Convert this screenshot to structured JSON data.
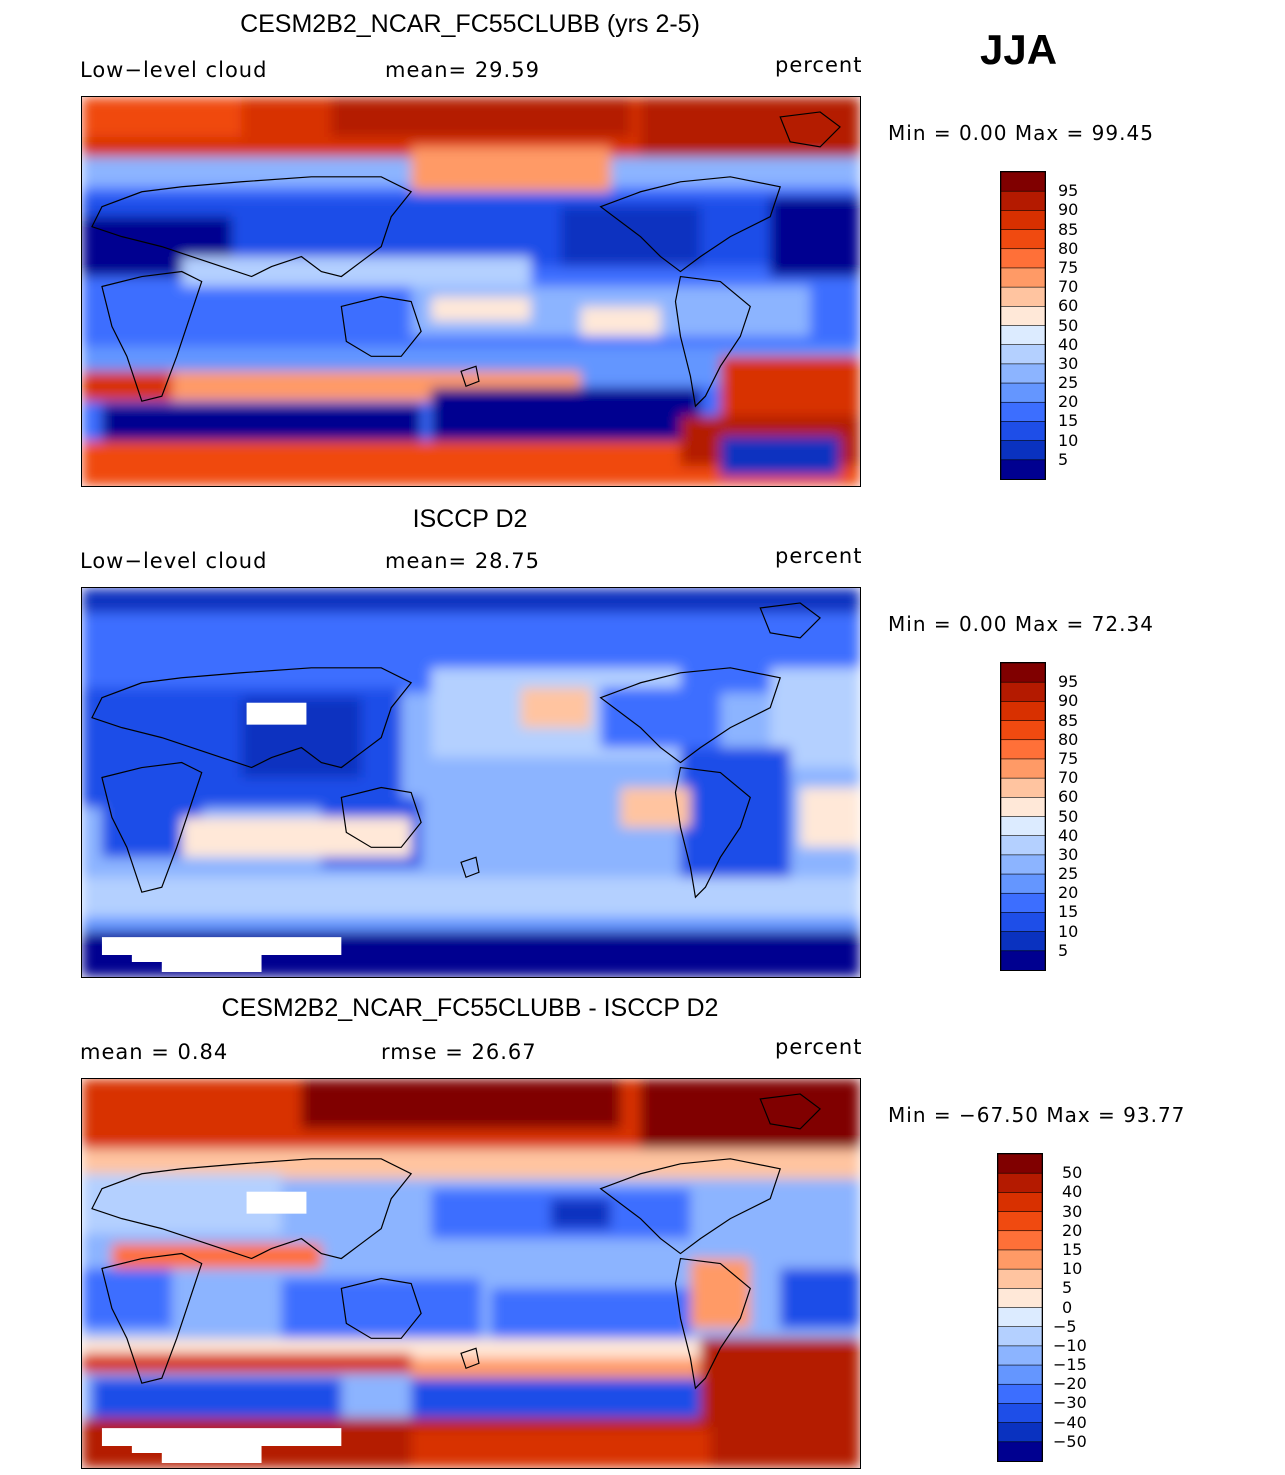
{
  "season": "JJA",
  "panels": [
    {
      "title": "CESM2B2_NCAR_FC55CLUBB (yrs 2-5)",
      "left_label": "Low−level cloud",
      "center_label": "mean=   29.59",
      "units": "percent",
      "minmax": "Min =    0.00 Max =   99.45",
      "kind": "model"
    },
    {
      "title": "ISCCP D2",
      "left_label": "Low−level cloud",
      "center_label": "mean=   28.75",
      "units": "percent",
      "minmax": "Min =    0.00 Max =   72.34",
      "kind": "obs"
    },
    {
      "title": "CESM2B2_NCAR_FC55CLUBB - ISCCP D2",
      "left_label": "mean  =      0.84",
      "center_label": "rmse  =    26.67",
      "units": "percent",
      "minmax": "Min = −67.50 Max =   93.77",
      "kind": "diff"
    }
  ],
  "chart_data": [
    {
      "type": "heatmap",
      "title": "CESM2B2_NCAR_FC55CLUBB (yrs 2-5)",
      "variable": "Low-level cloud",
      "units": "percent",
      "mean": 29.59,
      "min": 0.0,
      "max": 99.45,
      "colorbar_levels": [
        "95",
        "90",
        "85",
        "80",
        "75",
        "70",
        "60",
        "50",
        "40",
        "30",
        "25",
        "20",
        "15",
        "10",
        "5"
      ]
    },
    {
      "type": "heatmap",
      "title": "ISCCP D2",
      "variable": "Low-level cloud",
      "units": "percent",
      "mean": 28.75,
      "min": 0.0,
      "max": 72.34,
      "colorbar_levels": [
        "95",
        "90",
        "85",
        "80",
        "75",
        "70",
        "60",
        "50",
        "40",
        "30",
        "25",
        "20",
        "15",
        "10",
        "5"
      ]
    },
    {
      "type": "heatmap",
      "title": "CESM2B2_NCAR_FC55CLUBB - ISCCP D2",
      "units": "percent",
      "mean": 0.84,
      "rmse": 26.67,
      "min": -67.5,
      "max": 93.77,
      "colorbar_levels": [
        "50",
        "40",
        "30",
        "20",
        "15",
        "10",
        "5",
        "0",
        "−5",
        "−10",
        "−15",
        "−20",
        "−30",
        "−40",
        "−50"
      ]
    }
  ],
  "colors": {
    "bar16": [
      "#800000",
      "#b41a00",
      "#d83000",
      "#f04a10",
      "#ff7038",
      "#ff9a66",
      "#ffc4a0",
      "#ffe8d8",
      "#dcebff",
      "#b4d0ff",
      "#8cb4ff",
      "#6496ff",
      "#3c6eff",
      "#1e4ee8",
      "#0a32c0",
      "#000090"
    ],
    "land_line": "#000000",
    "missing": "#ffffff"
  }
}
